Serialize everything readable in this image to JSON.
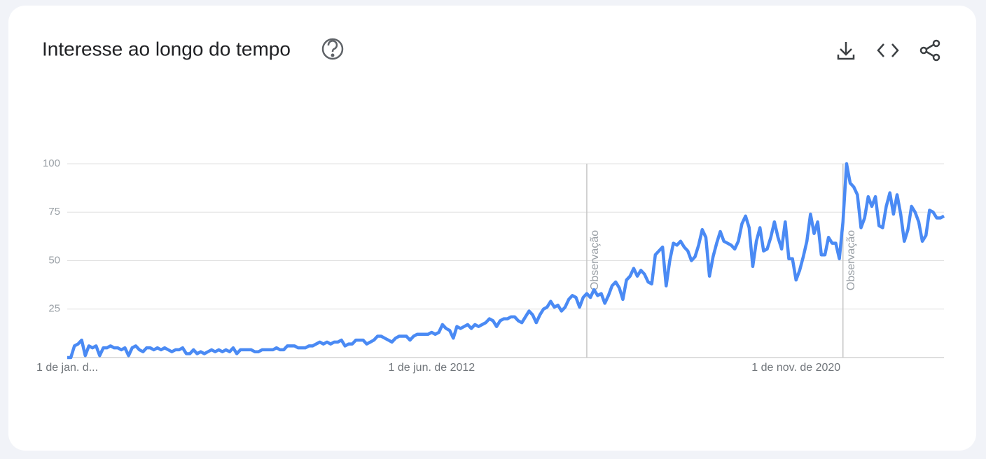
{
  "chart_data": {
    "type": "line",
    "title": "Interesse ao longo do tempo",
    "categories": [
      "1 de jan. d...",
      null,
      null,
      null,
      null,
      null,
      null,
      null,
      null,
      null,
      null,
      null,
      null,
      null,
      null,
      null,
      null,
      null,
      null,
      null,
      null,
      null,
      null,
      null,
      null,
      null,
      null,
      null,
      null,
      null,
      null,
      null,
      null,
      null,
      null,
      null,
      null,
      null,
      null,
      null,
      null,
      null,
      null,
      null,
      null,
      null,
      null,
      null,
      null,
      null,
      null,
      null,
      null,
      null,
      null,
      null,
      null,
      null,
      null,
      null,
      null,
      null,
      null,
      null,
      null,
      null,
      null,
      null,
      null,
      null,
      null,
      null,
      null,
      null,
      null,
      null,
      null,
      null,
      null,
      null,
      null,
      null,
      null,
      null,
      null,
      null,
      null,
      null,
      null,
      null,
      null,
      null,
      null,
      null,
      null,
      null,
      null,
      null,
      null,
      null,
      null,
      "1 de jun. de 2012",
      null,
      null,
      null,
      null,
      null,
      null,
      null,
      null,
      null,
      null,
      null,
      null,
      null,
      null,
      null,
      null,
      null,
      null,
      null,
      null,
      null,
      null,
      null,
      null,
      null,
      null,
      null,
      null,
      null,
      null,
      null,
      null,
      null,
      null,
      null,
      null,
      null,
      null,
      null,
      null,
      null,
      null,
      null,
      null,
      null,
      null,
      null,
      null,
      null,
      null,
      null,
      null,
      null,
      null,
      null,
      null,
      null,
      null,
      null,
      null,
      null,
      null,
      null,
      null,
      null,
      null,
      null,
      null,
      null,
      null,
      null,
      null,
      null,
      null,
      null,
      null,
      null,
      null,
      null,
      null,
      null,
      null,
      null,
      null,
      null,
      null,
      null,
      null,
      null,
      null,
      null,
      null,
      null,
      null,
      null,
      null,
      null,
      null,
      null,
      null,
      "1 de nov. de 2020",
      null,
      null,
      null,
      null,
      null,
      null,
      null,
      null,
      null,
      null,
      null,
      null,
      null,
      null,
      null,
      null,
      null,
      null,
      null,
      null,
      null,
      null,
      null,
      null,
      null,
      null,
      null,
      null,
      null,
      null,
      null,
      null,
      null,
      null,
      null,
      null,
      null,
      null,
      null,
      null,
      null
    ],
    "values": [
      0,
      0,
      6,
      7,
      9,
      1,
      6,
      5,
      6,
      1,
      5,
      5,
      6,
      5,
      5,
      4,
      5,
      1,
      5,
      6,
      4,
      3,
      5,
      5,
      4,
      5,
      4,
      5,
      4,
      3,
      4,
      4,
      5,
      2,
      2,
      4,
      2,
      3,
      2,
      3,
      4,
      3,
      4,
      3,
      4,
      3,
      5,
      2,
      4,
      4,
      4,
      4,
      3,
      3,
      4,
      4,
      4,
      4,
      5,
      4,
      4,
      6,
      6,
      6,
      5,
      5,
      5,
      6,
      6,
      7,
      8,
      7,
      8,
      7,
      8,
      8,
      9,
      6,
      7,
      7,
      9,
      9,
      9,
      7,
      8,
      9,
      11,
      11,
      10,
      9,
      8,
      10,
      11,
      11,
      11,
      9,
      11,
      12,
      12,
      12,
      12,
      13,
      12,
      13,
      17,
      15,
      14,
      10,
      16,
      15,
      16,
      17,
      15,
      17,
      16,
      17,
      18,
      20,
      19,
      16,
      19,
      20,
      20,
      21,
      21,
      19,
      18,
      21,
      24,
      22,
      18,
      22,
      25,
      26,
      29,
      26,
      27,
      24,
      26,
      30,
      32,
      31,
      26,
      31,
      33,
      31,
      35,
      32,
      33,
      28,
      32,
      37,
      39,
      36,
      30,
      40,
      42,
      46,
      42,
      45,
      43,
      39,
      38,
      53,
      55,
      57,
      37,
      50,
      59,
      58,
      60,
      57,
      55,
      50,
      52,
      58,
      66,
      62,
      42,
      52,
      59,
      65,
      60,
      59,
      58,
      56,
      60,
      69,
      73,
      67,
      47,
      60,
      67,
      55,
      56,
      62,
      70,
      62,
      56,
      70,
      51,
      51,
      40,
      45,
      52,
      60,
      74,
      64,
      70,
      53,
      53,
      62,
      59,
      59,
      51,
      70,
      100,
      90,
      88,
      84,
      67,
      72,
      83,
      78,
      83,
      68,
      67,
      78,
      85,
      74,
      84,
      74,
      60,
      66,
      78,
      75,
      70,
      60,
      63,
      76,
      75,
      72,
      72,
      73
    ],
    "color": "#4a8af4",
    "ylim": [
      0,
      100
    ],
    "yticks": [
      25,
      50,
      75,
      100
    ],
    "grid": true,
    "annotations": [
      {
        "text": "Observação",
        "index": 144
      },
      {
        "text": "Observação",
        "index": 215
      }
    ]
  }
}
